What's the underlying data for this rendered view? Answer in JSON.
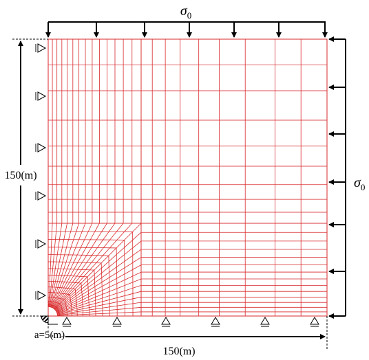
{
  "top_load": {
    "symbol": "σ",
    "subscript": "0"
  },
  "right_load": {
    "symbol": "σ",
    "subscript": "0"
  },
  "height_dimension": "150(m)",
  "width_dimension": "150(m)",
  "hole_radius": "a=5(m)"
}
